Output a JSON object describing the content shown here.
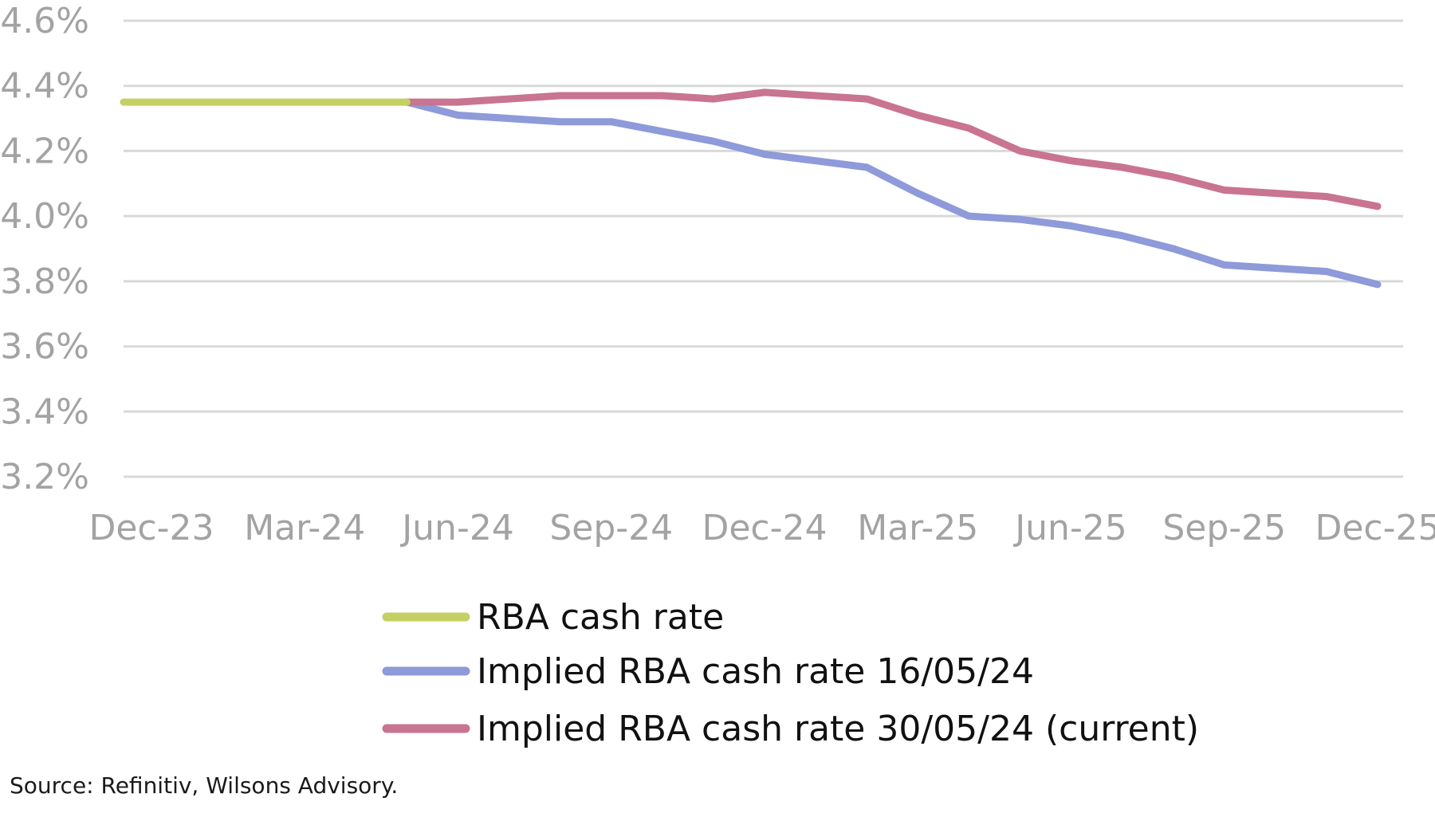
{
  "chart_data": {
    "type": "line",
    "title": "",
    "xlabel": "",
    "ylabel": "",
    "x": [
      "Dec-23",
      "Jan-24",
      "Feb-24",
      "Mar-24",
      "Apr-24",
      "May-24",
      "Jun-24",
      "Jul-24",
      "Aug-24",
      "Sep-24",
      "Oct-24",
      "Nov-24",
      "Dec-24",
      "Jan-25",
      "Feb-25",
      "Mar-25",
      "Apr-25",
      "May-25",
      "Jun-25",
      "Jul-25",
      "Aug-25",
      "Sep-25",
      "Oct-25",
      "Nov-25",
      "Dec-25"
    ],
    "x_tick_labels": [
      "Dec-23",
      "Mar-24",
      "Jun-24",
      "Sep-24",
      "Dec-24",
      "Mar-25",
      "Jun-25",
      "Sep-25",
      "Dec-25"
    ],
    "y_tick_labels": [
      "3.2%",
      "3.4%",
      "3.6%",
      "3.8%",
      "4.0%",
      "4.2%",
      "4.4%",
      "4.6%"
    ],
    "ylim": [
      3.2,
      4.6
    ],
    "y_ticks": [
      3.2,
      3.4,
      3.6,
      3.8,
      4.0,
      4.2,
      4.4,
      4.6
    ],
    "grid": true,
    "legend_position": "bottom",
    "series": [
      {
        "name": "RBA cash rate",
        "color": "#c5d063",
        "values": [
          4.35,
          4.35,
          4.35,
          4.35,
          4.35,
          4.35,
          null,
          null,
          null,
          null,
          null,
          null,
          null,
          null,
          null,
          null,
          null,
          null,
          null,
          null,
          null,
          null,
          null,
          null,
          null
        ]
      },
      {
        "name": "Implied RBA cash rate 16/05/24",
        "color": "#8e9ad9",
        "values": [
          null,
          null,
          null,
          null,
          null,
          4.35,
          4.31,
          4.3,
          4.29,
          4.29,
          4.26,
          4.23,
          4.19,
          4.17,
          4.15,
          4.07,
          4.0,
          3.99,
          3.97,
          3.94,
          3.9,
          3.85,
          3.84,
          3.83,
          3.79
        ]
      },
      {
        "name": "Implied RBA cash rate 30/05/24 (current)",
        "color": "#c97490",
        "values": [
          null,
          null,
          null,
          null,
          null,
          4.35,
          4.35,
          4.36,
          4.37,
          4.37,
          4.37,
          4.36,
          4.38,
          4.37,
          4.36,
          4.31,
          4.27,
          4.2,
          4.17,
          4.15,
          4.12,
          4.08,
          4.07,
          4.06,
          4.03
        ]
      }
    ],
    "source": "Source: Refinitiv, Wilsons Advisory."
  },
  "colors": {
    "grid": "#d9d9d9",
    "tick_text": "#a3a3a3",
    "legend_text": "#111111"
  }
}
